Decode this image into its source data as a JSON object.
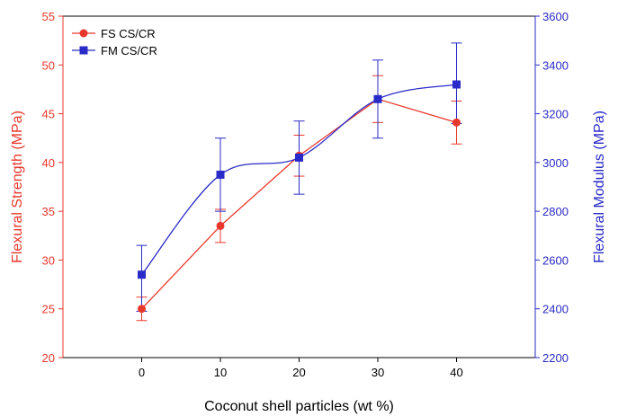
{
  "chart_data": {
    "type": "line",
    "xlabel": "Coconut shell particles (wt %)",
    "x": [
      0,
      10,
      20,
      30,
      40
    ],
    "xlim": [
      -10,
      50
    ],
    "x_ticks": [
      "0",
      "10",
      "20",
      "30",
      "40"
    ],
    "y_left": {
      "label": "Flexural  Strength (MPa)",
      "range": [
        20,
        55
      ],
      "ticks": [
        "20",
        "25",
        "30",
        "35",
        "40",
        "45",
        "50",
        "55"
      ],
      "color": "#e8382c"
    },
    "y_right": {
      "label": "Flexural Modulus (MPa)",
      "range": [
        2200,
        3600
      ],
      "ticks": [
        "2200",
        "2400",
        "2600",
        "2800",
        "3000",
        "3200",
        "3400",
        "3600"
      ],
      "color": "#2a2ac8"
    },
    "series": [
      {
        "name": "FS CS/CR",
        "axis": "left",
        "color": "#e8382c",
        "marker": "circle",
        "smooth": false,
        "values": [
          25.0,
          33.5,
          40.7,
          46.5,
          44.1
        ],
        "err_low": [
          23.8,
          31.8,
          38.6,
          44.1,
          41.9
        ],
        "err_high": [
          26.2,
          35.2,
          42.8,
          48.9,
          46.3
        ]
      },
      {
        "name": "FM  CS/CR",
        "axis": "right",
        "color": "#2a2ac8",
        "marker": "square",
        "smooth": true,
        "values": [
          2540,
          2950,
          3020,
          3260,
          3320
        ],
        "err_low": [
          2390,
          2800,
          2870,
          3100,
          3160
        ],
        "err_high": [
          2660,
          3100,
          3170,
          3420,
          3490
        ]
      }
    ],
    "legend_position": "top-left",
    "grid": false
  }
}
